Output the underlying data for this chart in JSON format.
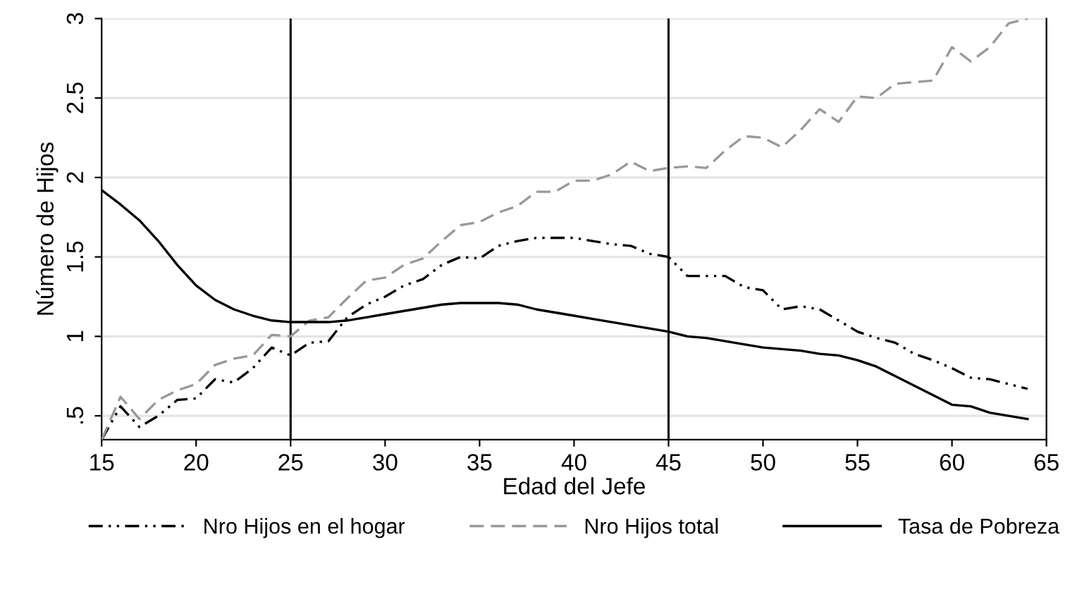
{
  "chart_data": {
    "type": "line",
    "xlabel": "Edad del Jefe",
    "ylabel": "Número de Hijos",
    "x": [
      15,
      16,
      17,
      18,
      19,
      20,
      21,
      22,
      23,
      24,
      25,
      26,
      27,
      28,
      29,
      30,
      31,
      32,
      33,
      34,
      35,
      36,
      37,
      38,
      39,
      40,
      41,
      42,
      43,
      44,
      45,
      46,
      47,
      48,
      49,
      50,
      51,
      52,
      53,
      54,
      55,
      56,
      57,
      58,
      59,
      60,
      61,
      62,
      63,
      64
    ],
    "series": [
      {
        "name": "Nro Hijos en el hogar",
        "color": "#000000",
        "line_style": "dashdot",
        "values": [
          0.35,
          0.56,
          0.43,
          0.5,
          0.6,
          0.61,
          0.73,
          0.71,
          0.8,
          0.93,
          0.88,
          0.96,
          0.97,
          1.12,
          1.2,
          1.25,
          1.32,
          1.36,
          1.45,
          1.5,
          1.49,
          1.57,
          1.6,
          1.62,
          1.62,
          1.62,
          1.6,
          1.58,
          1.57,
          1.52,
          1.5,
          1.38,
          1.38,
          1.38,
          1.31,
          1.29,
          1.17,
          1.19,
          1.17,
          1.1,
          1.03,
          0.99,
          0.96,
          0.89,
          0.85,
          0.8,
          0.74,
          0.73,
          0.7,
          0.67
        ]
      },
      {
        "name": "Nro Hijos total",
        "color": "#999999",
        "line_style": "dashed",
        "values": [
          0.35,
          0.62,
          0.48,
          0.6,
          0.66,
          0.7,
          0.82,
          0.86,
          0.88,
          1.01,
          1.0,
          1.1,
          1.12,
          1.24,
          1.35,
          1.37,
          1.45,
          1.49,
          1.6,
          1.7,
          1.72,
          1.78,
          1.82,
          1.91,
          1.91,
          1.98,
          1.98,
          2.02,
          2.1,
          2.04,
          2.06,
          2.07,
          2.06,
          2.17,
          2.26,
          2.25,
          2.19,
          2.3,
          2.43,
          2.35,
          2.51,
          2.5,
          2.59,
          2.6,
          2.61,
          2.82,
          2.73,
          2.82,
          2.97,
          3.0
        ]
      },
      {
        "name": "Tasa de Pobreza",
        "color": "#000000",
        "line_style": "solid",
        "values": [
          1.92,
          1.83,
          1.73,
          1.6,
          1.45,
          1.32,
          1.23,
          1.17,
          1.13,
          1.1,
          1.09,
          1.09,
          1.09,
          1.1,
          1.12,
          1.14,
          1.16,
          1.18,
          1.2,
          1.21,
          1.21,
          1.21,
          1.2,
          1.17,
          1.15,
          1.13,
          1.11,
          1.09,
          1.07,
          1.05,
          1.03,
          1.0,
          0.99,
          0.97,
          0.95,
          0.93,
          0.92,
          0.91,
          0.89,
          0.88,
          0.85,
          0.81,
          0.75,
          0.69,
          0.63,
          0.57,
          0.56,
          0.52,
          0.5,
          0.48
        ]
      }
    ],
    "xlim": [
      15,
      65
    ],
    "xticks": [
      15,
      20,
      25,
      30,
      35,
      40,
      45,
      50,
      55,
      60,
      65
    ],
    "ylim": [
      0.35,
      3
    ],
    "yticks": [
      {
        "value": 0.5,
        "label": ".5"
      },
      1,
      1.5,
      2,
      2.5,
      3
    ],
    "ref_lines": [
      {
        "axis": "x",
        "value": 25,
        "color": "#000000"
      },
      {
        "axis": "x",
        "value": 45,
        "color": "#000000"
      }
    ],
    "grid": "y",
    "legend": "bottom"
  }
}
